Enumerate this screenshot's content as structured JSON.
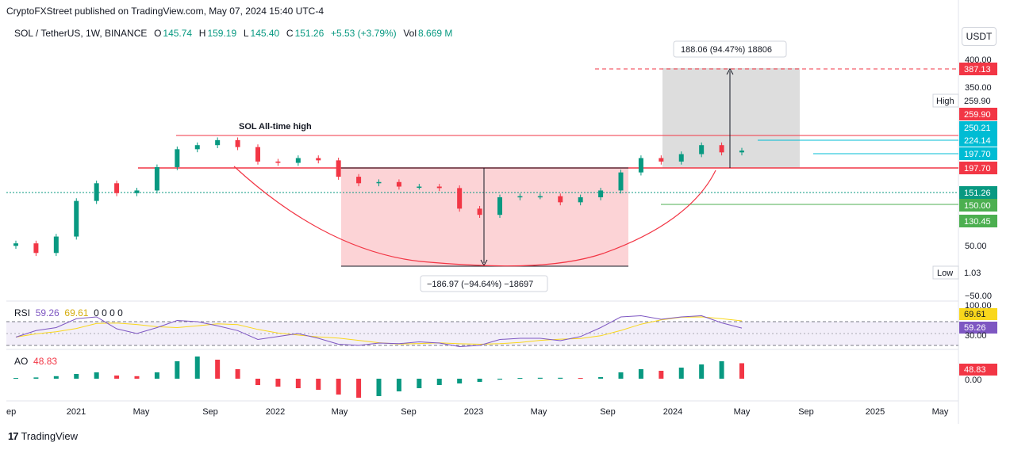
{
  "header": {
    "text": "CryptoFXStreet published on TradingView.com, May 07, 2024 15:40 UTC-4"
  },
  "legend": {
    "symbol": "SOL / TetherUS, 1W, BINANCE",
    "o_label": "O",
    "o_value": "145.74",
    "h_label": "H",
    "h_value": "159.19",
    "l_label": "L",
    "l_value": "145.40",
    "c_label": "C",
    "c_value": "151.26",
    "change": "+5.53 (+3.79%)",
    "vol_label": "Vol",
    "vol_value": "8.669 M"
  },
  "currency_button": "USDT",
  "rsi_legend": {
    "name": "RSI",
    "v1": "59.26",
    "v2": "69.61",
    "zeros": "0 0 0 0"
  },
  "ao_legend": {
    "name": "AO",
    "value": "48.83"
  },
  "footer": {
    "brand": "TradingView",
    "logo": "17"
  },
  "annotations": {
    "ath_label": "SOL All-time high",
    "rise_label": "188.06 (94.47%) 18806",
    "drop_label": "−186.97 (−94.64%) −18697",
    "high_key": "High",
    "high_value": "259.90",
    "low_key": "Low",
    "low_value": "1.03"
  },
  "price_tags": [
    {
      "text": "387.13",
      "color": "#f23645"
    },
    {
      "text": "259.90",
      "color": "#f23645"
    },
    {
      "text": "250.21",
      "color": "#00bcd4"
    },
    {
      "text": "224.14",
      "color": "#00bcd4"
    },
    {
      "text": "197.70",
      "color": "#00bcd4"
    },
    {
      "text": "197.70",
      "color": "#f23645"
    },
    {
      "text": "151.26",
      "color": "#089981"
    },
    {
      "text": "150.00",
      "color": "#4caf50"
    },
    {
      "text": "130.45",
      "color": "#4caf50"
    }
  ],
  "price_axis_ticks": [
    "400.00",
    "350.00",
    "50.00",
    "−50.00"
  ],
  "rsi_axis": {
    "top": "100.00",
    "tags": [
      {
        "text": "69.61",
        "color": "#f9d71c",
        "textColor": "#131722"
      },
      {
        "text": "59.26",
        "color": "#7e57c2",
        "textColor": "#ffffff"
      }
    ],
    "bottom": "30.00"
  },
  "ao_axis": {
    "tag": {
      "text": "48.83",
      "color": "#f23645"
    },
    "zero": "0.00"
  },
  "time_axis": [
    "ep",
    "2021",
    "May",
    "Sep",
    "2022",
    "May",
    "Sep",
    "2023",
    "May",
    "Sep",
    "2024",
    "May",
    "Sep",
    "2025",
    "May"
  ],
  "colors": {
    "up": "#089981",
    "down": "#f23645",
    "rsi": "#7e57c2",
    "rsi_ma": "#f9d71c"
  },
  "chart_data": {
    "type": "candlestick",
    "symbol": "SOL / TetherUS",
    "interval": "1W",
    "price_series": {
      "dates": [
        "2020-09",
        "2020-11",
        "2021-01",
        "2021-03",
        "2021-04",
        "2021-05",
        "2021-07",
        "2021-08",
        "2021-09",
        "2021-10",
        "2021-11",
        "2021-12",
        "2022-01",
        "2022-02",
        "2022-03",
        "2022-04",
        "2022-05",
        "2022-06",
        "2022-07",
        "2022-08",
        "2022-09",
        "2022-10",
        "2022-11",
        "2022-12",
        "2023-01",
        "2023-02",
        "2023-04",
        "2023-06",
        "2023-08",
        "2023-10",
        "2023-11",
        "2023-12",
        "2024-01",
        "2024-02",
        "2024-03",
        "2024-04",
        "2024-05"
      ],
      "close": [
        3,
        2,
        4,
        18,
        38,
        25,
        28,
        75,
        160,
        190,
        235,
        175,
        95,
        90,
        110,
        100,
        50,
        38,
        40,
        33,
        33,
        31,
        13,
        10,
        21,
        22,
        22,
        17,
        21,
        28,
        60,
        110,
        95,
        130,
        190,
        140,
        151
      ]
    },
    "levels": {
      "ath": 259.9,
      "resistance_1": 197.7,
      "support_1": 150.0,
      "support_2": 130.45,
      "target": 387.13
    },
    "rsi_series": {
      "values": [
        44,
        55,
        60,
        75,
        78,
        58,
        50,
        60,
        72,
        70,
        63,
        55,
        40,
        45,
        50,
        42,
        32,
        30,
        34,
        33,
        36,
        34,
        28,
        30,
        40,
        42,
        42,
        38,
        45,
        60,
        78,
        80,
        74,
        78,
        80,
        68,
        59.26
      ]
    },
    "ao_series": {
      "values": [
        2,
        4,
        8,
        15,
        20,
        10,
        8,
        20,
        55,
        70,
        60,
        30,
        -20,
        -25,
        -30,
        -35,
        -50,
        -60,
        -55,
        -40,
        -30,
        -20,
        -15,
        -10,
        -3,
        2,
        3,
        3,
        2,
        5,
        20,
        30,
        25,
        35,
        45,
        55,
        48.83
      ]
    }
  }
}
